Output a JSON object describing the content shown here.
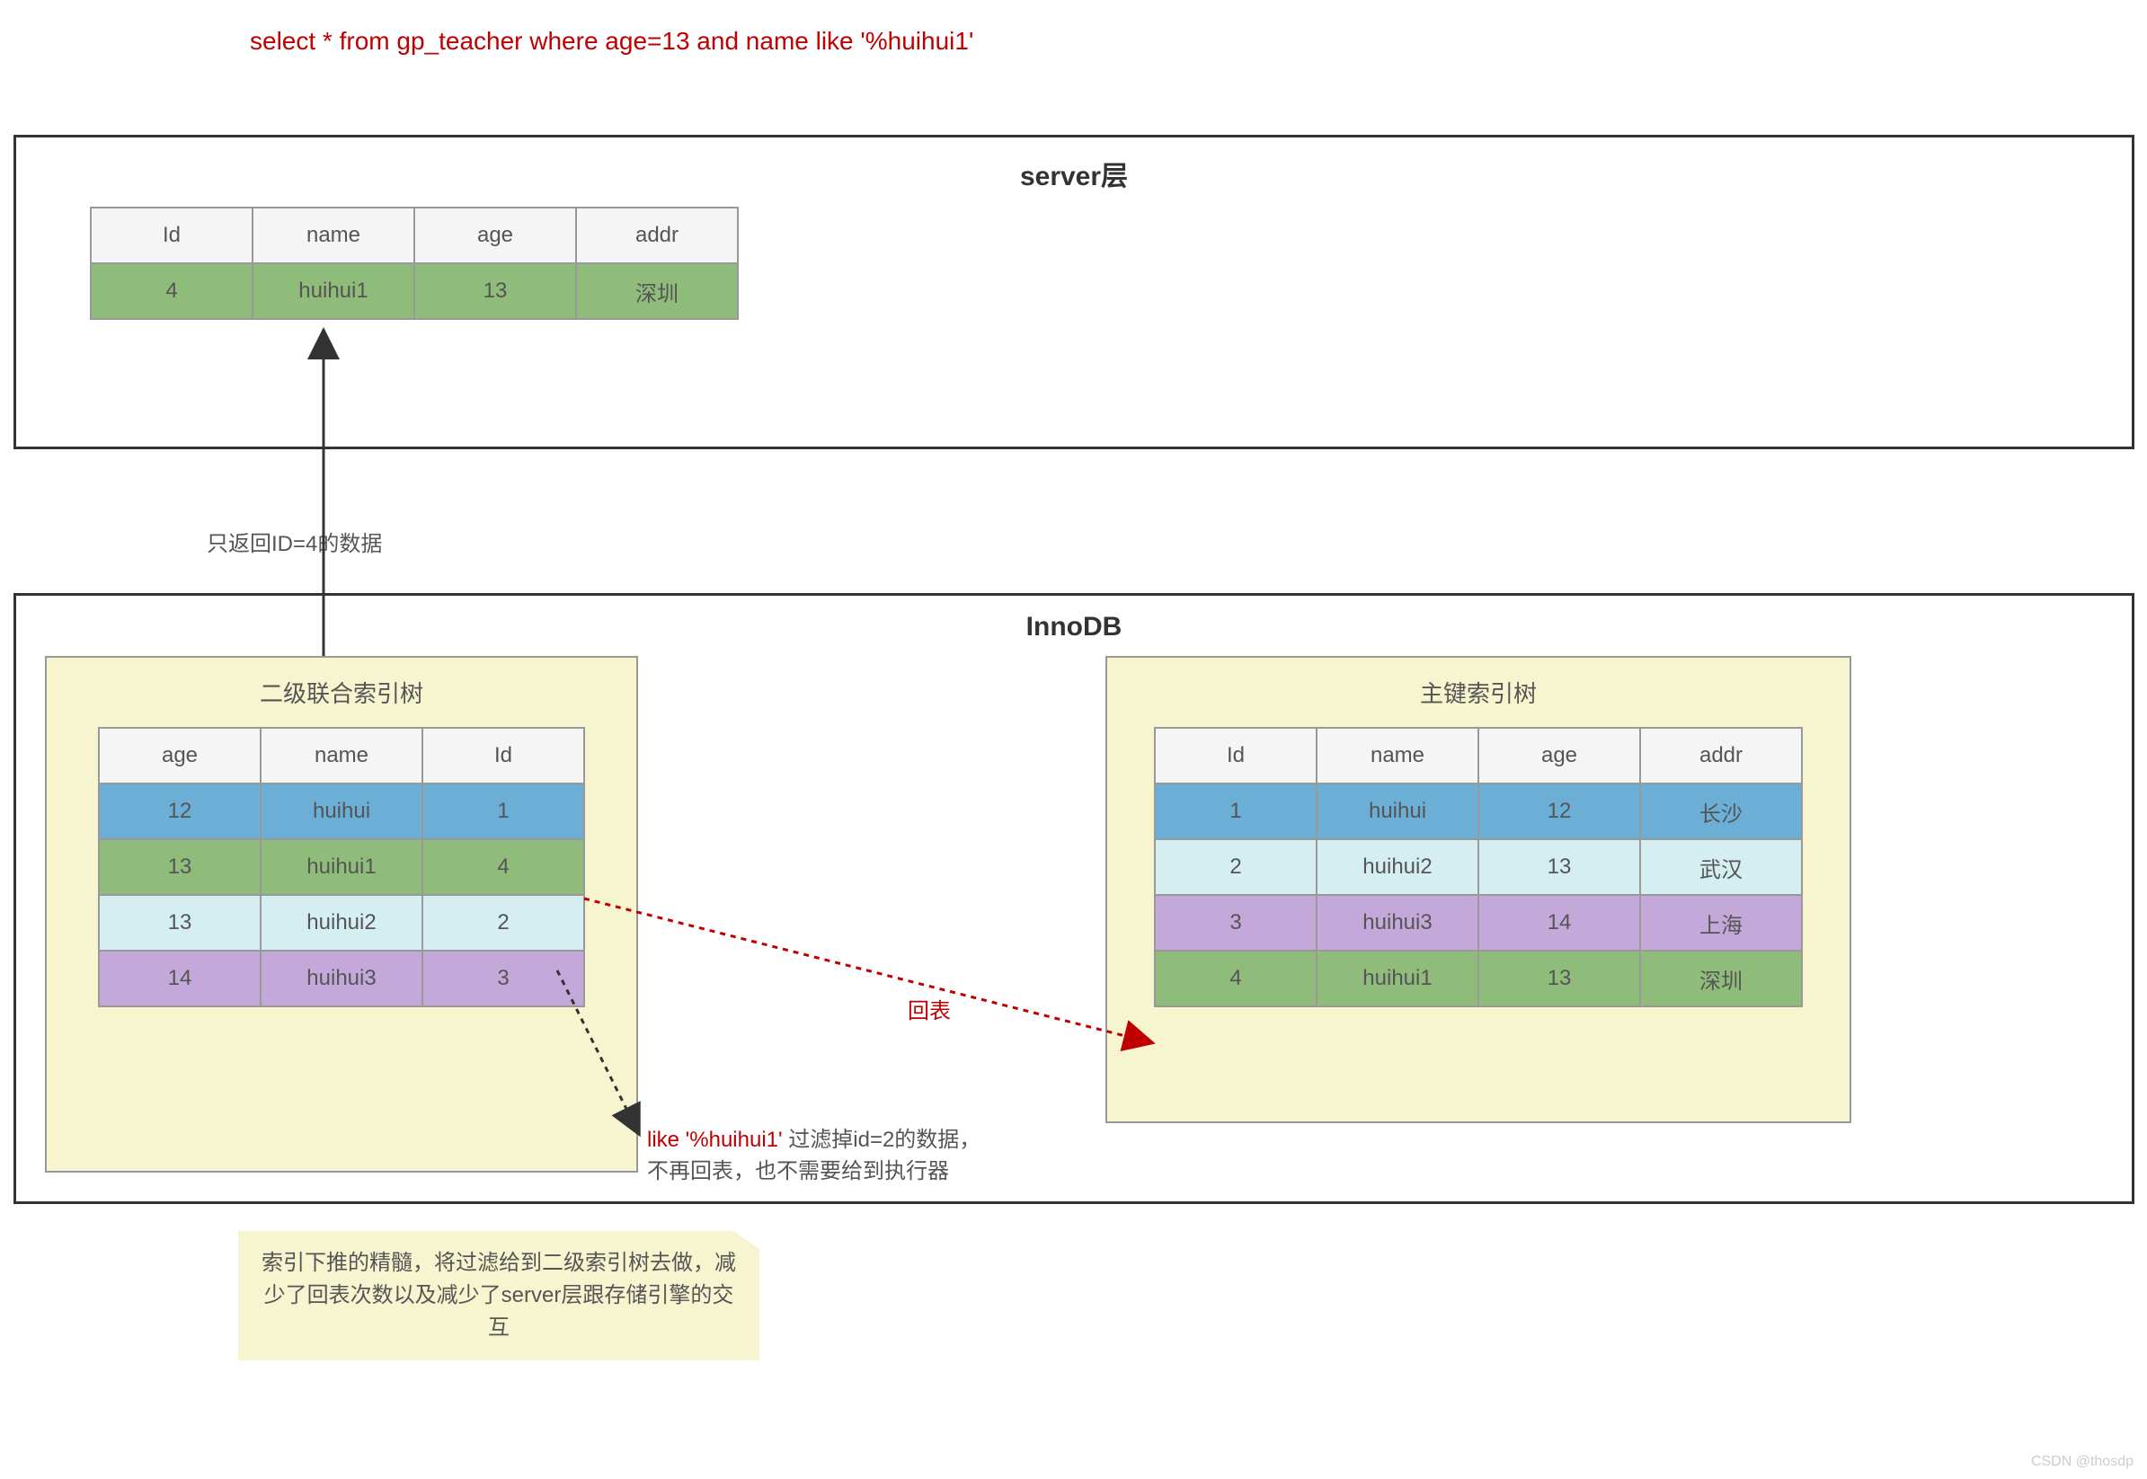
{
  "sql_query": "select *  from  gp_teacher where  age=13 and name like '%huihui1'",
  "server_layer": {
    "title": "server层",
    "table": {
      "columns": [
        "Id",
        "name",
        "age",
        "addr"
      ],
      "rows": [
        {
          "cells": [
            "4",
            "huihui1",
            "13",
            "深圳"
          ],
          "bg": "#8fbc7a"
        }
      ]
    }
  },
  "innodb_layer": {
    "title": "InnoDB",
    "left_tree": {
      "title": "二级联合索引树",
      "columns": [
        "age",
        "name",
        "Id"
      ],
      "rows": [
        {
          "cells": [
            "12",
            "huihui",
            "1"
          ],
          "bg": "#6baed6"
        },
        {
          "cells": [
            "13",
            "huihui1",
            "4"
          ],
          "bg": "#8fbc7a"
        },
        {
          "cells": [
            "13",
            "huihui2",
            "2"
          ],
          "bg": "#d4eef2"
        },
        {
          "cells": [
            "14",
            "huihui3",
            "3"
          ],
          "bg": "#c4a8d9"
        }
      ]
    },
    "right_tree": {
      "title": "主键索引树",
      "columns": [
        "Id",
        "name",
        "age",
        "addr"
      ],
      "rows": [
        {
          "cells": [
            "1",
            "huihui",
            "12",
            "长沙"
          ],
          "bg": "#6baed6"
        },
        {
          "cells": [
            "2",
            "huihui2",
            "13",
            "武汉"
          ],
          "bg": "#d4eef2"
        },
        {
          "cells": [
            "3",
            "huihui3",
            "14",
            "上海"
          ],
          "bg": "#c4a8d9"
        },
        {
          "cells": [
            "4",
            "huihui1",
            "13",
            "深圳"
          ],
          "bg": "#8fbc7a"
        }
      ]
    }
  },
  "annotations": {
    "return_arrow_label": "只返回ID=4的数据",
    "lookup_label": "回表",
    "filter_red": "like '%huihui1'",
    "filter_black1": " 过滤掉id=2的数据，",
    "filter_black2": "不再回表，也不需要给到执行器",
    "bottom_note": "索引下推的精髓，将过滤给到二级索引树去做，减少了回表次数以及减少了server层跟存储引擎的交互"
  },
  "watermark": "CSDN @thosdp",
  "colors": {
    "border": "#333333",
    "sub_bg": "#f7f5cf",
    "red": "#c00000"
  }
}
